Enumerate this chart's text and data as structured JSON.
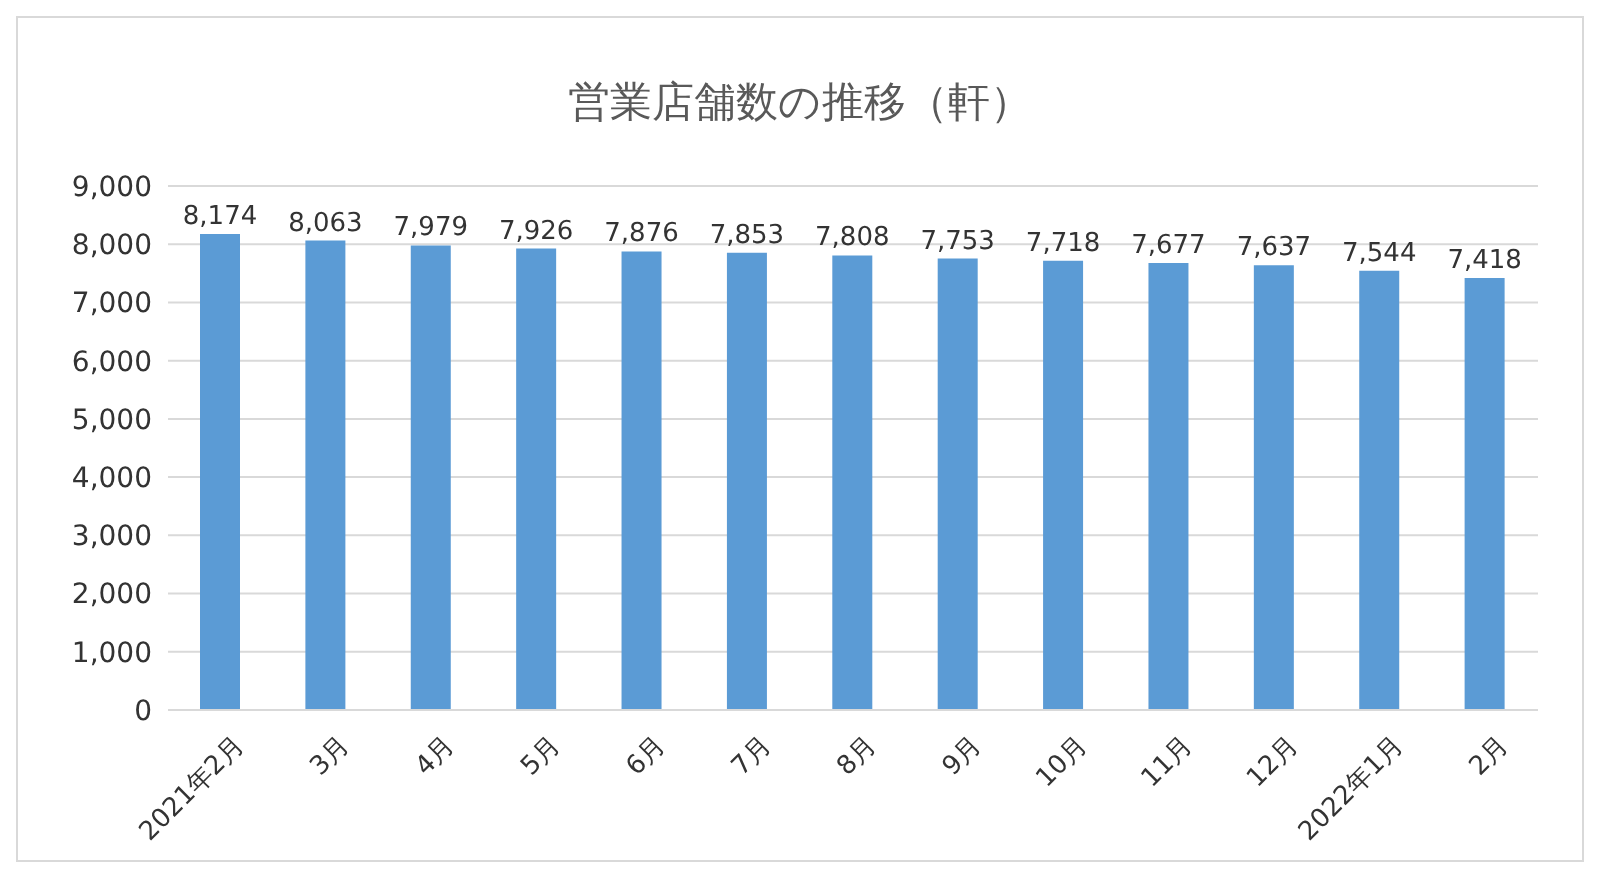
{
  "chart_data": {
    "type": "bar",
    "title": "営業店舗数の推移（軒）",
    "categories": [
      "2021年2月",
      "3月",
      "4月",
      "5月",
      "6月",
      "7月",
      "8月",
      "9月",
      "10月",
      "11月",
      "12月",
      "2022年1月",
      "2月"
    ],
    "values": [
      8174,
      8063,
      7979,
      7926,
      7876,
      7853,
      7808,
      7753,
      7718,
      7677,
      7637,
      7544,
      7418
    ],
    "value_labels": [
      "8,174",
      "8,063",
      "7,979",
      "7,926",
      "7,876",
      "7,853",
      "7,808",
      "7,753",
      "7,718",
      "7,677",
      "7,637",
      "7,544",
      "7,418"
    ],
    "color": "#5b9bd5",
    "ylim": [
      0,
      9000
    ],
    "yticks": [
      0,
      {
        "value": 1000,
        "label": "1,000"
      },
      {
        "value": 2000,
        "label": "2,000"
      },
      {
        "value": 3000,
        "label": "3,000"
      },
      {
        "value": 4000,
        "label": "4,000"
      },
      {
        "value": 5000,
        "label": "5,000"
      },
      {
        "value": 6000,
        "label": "6,000"
      },
      {
        "value": 7000,
        "label": "7,000"
      },
      {
        "value": 8000,
        "label": "8,000"
      },
      {
        "value": 9000,
        "label": "9,000"
      }
    ],
    "grid": "y"
  }
}
